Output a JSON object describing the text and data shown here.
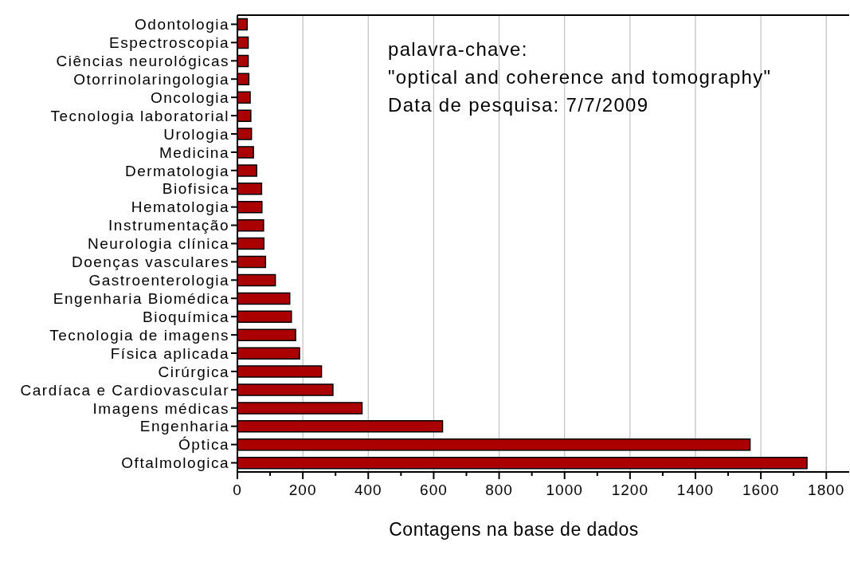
{
  "chart_data": {
    "type": "bar",
    "orientation": "horizontal",
    "categories": [
      "Odontologia",
      "Espectroscopia",
      "Ciências neurológicas",
      "Otorrinolaringologia",
      "Oncologia",
      "Tecnologia laboratorial",
      "Urologia",
      "Medicina",
      "Dermatologia",
      "Biofisica",
      "Hematologia",
      "Instrumentação",
      "Neurologia clínica",
      "Doenças vasculares",
      "Gastroenterologia",
      "Engenharia Biomédica",
      "Bioquímica",
      "Tecnologia de imagens",
      "Física aplicada",
      "Cirúrgica",
      "Cardíaca e Cardiovascular",
      "Imagens médicas",
      "Engenharia",
      "Óptica",
      "Oftalmologica"
    ],
    "values": [
      30,
      33,
      33,
      35,
      39,
      41,
      43,
      49,
      59,
      74,
      75,
      80,
      81,
      86,
      116,
      160,
      165,
      178,
      190,
      257,
      292,
      381,
      627,
      1567,
      1741
    ],
    "color": "#aa0000",
    "xlabel": "Contagens na base de dados",
    "annotations": [
      "palavra-chave:",
      "\"optical and coherence and tomography\"",
      "Data de pesquisa: 7/7/2009"
    ],
    "xlim": [
      0,
      1870
    ],
    "xticks": [
      0,
      {
        "value": 100,
        "label": null
      },
      200,
      {
        "value": 300,
        "label": null
      },
      400,
      {
        "value": 500,
        "label": null
      },
      600,
      {
        "value": 700,
        "label": null
      },
      800,
      {
        "value": 900,
        "label": null
      },
      1000,
      {
        "value": 1100,
        "label": null
      },
      1200,
      {
        "value": 1300,
        "label": null
      },
      1400,
      {
        "value": 1500,
        "label": null
      },
      1600,
      {
        "value": 1700,
        "label": null
      },
      1800
    ],
    "grid": "x"
  }
}
